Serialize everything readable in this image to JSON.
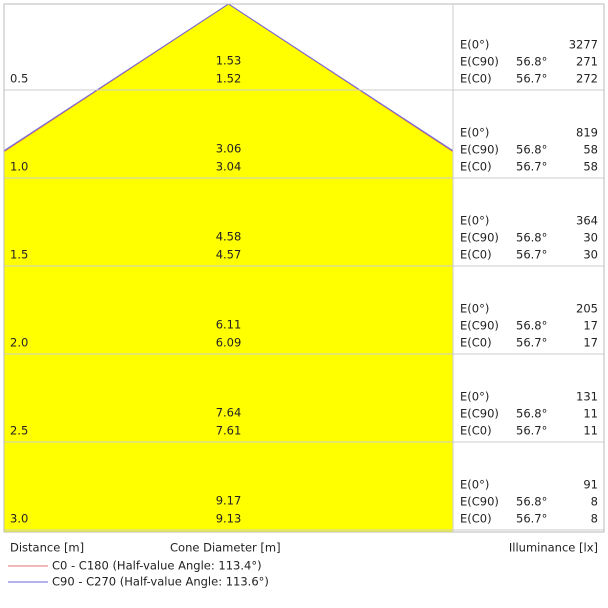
{
  "chart_data": {
    "type": "cone",
    "columns": {
      "distance": "Distance [m]",
      "diameter": "Cone Diameter [m]",
      "illuminance": "Illuminance [lx]"
    },
    "x": [
      0.5,
      {
        "value": 1,
        "label": "1.0"
      },
      1.5,
      {
        "value": 2,
        "label": "2.0"
      },
      2.5,
      {
        "value": 3,
        "label": "3.0"
      }
    ],
    "series": [
      {
        "name": "C0 - C180 (Half-value Angle: 113.4°)",
        "color": "#e07070",
        "values": [
          1.52,
          3.04,
          4.57,
          6.09,
          7.61,
          9.13
        ]
      },
      {
        "name": "C90 - C270 (Half-value Angle: 113.6°)",
        "color": "#6a6ad8",
        "values": [
          1.53,
          3.06,
          4.58,
          6.11,
          7.64,
          9.17
        ]
      }
    ],
    "fill": "#ffff00",
    "e_labels": [
      "E(0°)",
      "E(C90)",
      "E(C0)"
    ],
    "c90_angle": {
      "value": 56.8,
      "label": "56.8°"
    },
    "c0_angle": {
      "value": 56.7,
      "label": "56.7°"
    },
    "e0": [
      3277,
      819,
      364,
      205,
      131,
      91
    ],
    "e_c90": [
      271,
      58,
      30,
      17,
      11,
      8
    ],
    "e_c0": [
      272,
      58,
      30,
      17,
      11,
      8
    ]
  }
}
